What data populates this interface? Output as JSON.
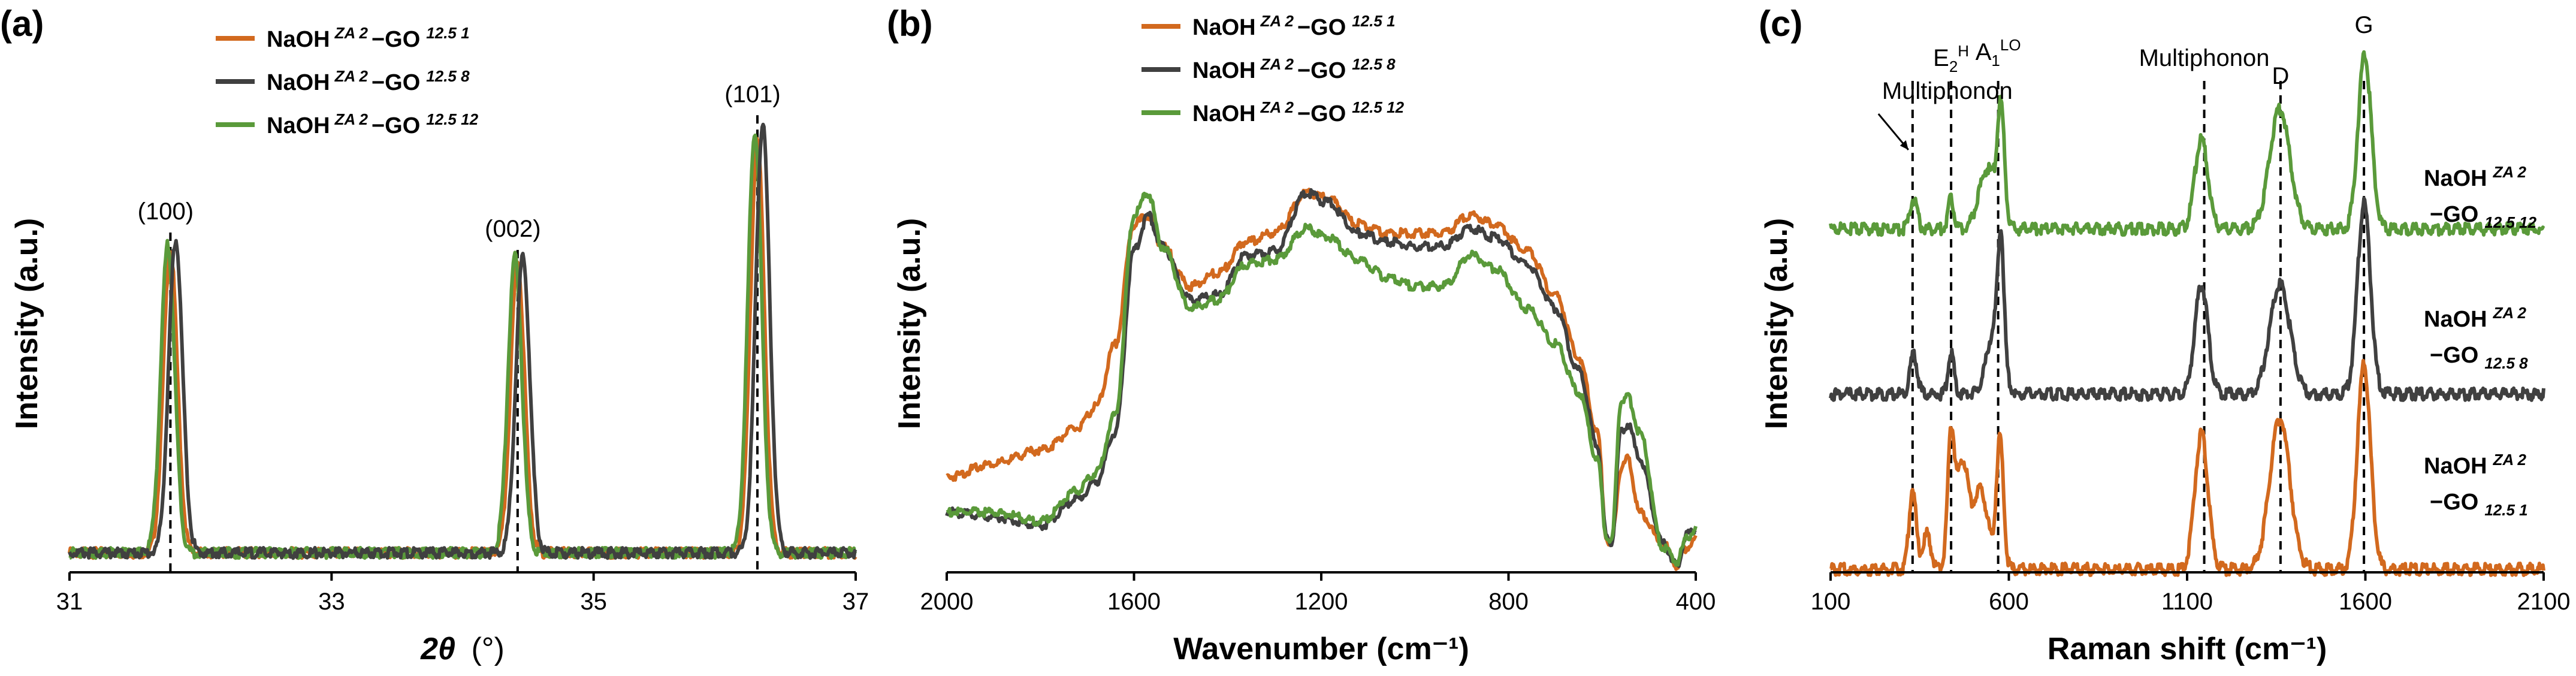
{
  "colors": {
    "orange": "#D2691E",
    "dark": "#404040",
    "green": "#5A9A3A"
  },
  "chart_data": [
    {
      "id": "a",
      "type": "line",
      "panel_label": "(a)",
      "xlabel_symbol": "2θ",
      "xlabel_unit": "(°)",
      "ylabel": "Intensity (a.u.)",
      "xlim": [
        31,
        37
      ],
      "ticks": [
        31,
        33,
        35,
        37
      ],
      "tick_labels": [
        "31",
        "33",
        "35",
        "37"
      ],
      "series_names": [
        "NaOH ZA 2−GO 12.5 1",
        "NaOH ZA 2−GO 12.5 8",
        "NaOH ZA 2−GO 12.5 12"
      ],
      "peaks": [
        {
          "label": "(100)",
          "x": 31.77,
          "heights": [
            0.7,
            0.72,
            0.71
          ]
        },
        {
          "label": "(002)",
          "x": 34.42,
          "heights": [
            0.67,
            0.68,
            0.68
          ]
        },
        {
          "label": "(101)",
          "x": 36.25,
          "heights": [
            0.95,
            0.99,
            0.97
          ]
        }
      ],
      "series_offsets": [
        0,
        0.04,
        -0.02
      ]
    },
    {
      "id": "b",
      "type": "line",
      "panel_label": "(b)",
      "xlabel": "Wavenumber (cm⁻¹)",
      "ylabel": "Intensity (a.u.)",
      "xlim": [
        2000,
        400
      ],
      "ticks": [
        2000,
        1600,
        1200,
        800,
        400
      ],
      "tick_labels": [
        "2000",
        "1600",
        "1200",
        "800",
        "400"
      ],
      "series": [
        {
          "name": "NaOH ZA 2−GO 12.5 1",
          "points": [
            [
              2000,
              0.2
            ],
            [
              1900,
              0.23
            ],
            [
              1800,
              0.26
            ],
            [
              1720,
              0.31
            ],
            [
              1680,
              0.36
            ],
            [
              1640,
              0.5
            ],
            [
              1600,
              0.77
            ],
            [
              1570,
              0.79
            ],
            [
              1540,
              0.72
            ],
            [
              1480,
              0.63
            ],
            [
              1420,
              0.66
            ],
            [
              1360,
              0.73
            ],
            [
              1300,
              0.75
            ],
            [
              1230,
              0.84
            ],
            [
              1190,
              0.83
            ],
            [
              1120,
              0.77
            ],
            [
              1060,
              0.75
            ],
            [
              1000,
              0.75
            ],
            [
              940,
              0.75
            ],
            [
              880,
              0.79
            ],
            [
              830,
              0.77
            ],
            [
              760,
              0.71
            ],
            [
              700,
              0.61
            ],
            [
              650,
              0.47
            ],
            [
              610,
              0.3
            ],
            [
              590,
              0.06
            ],
            [
              580,
              0.05
            ],
            [
              560,
              0.22
            ],
            [
              545,
              0.24
            ],
            [
              520,
              0.12
            ],
            [
              470,
              0.05
            ],
            [
              440,
              0.0
            ],
            [
              420,
              0.04
            ],
            [
              400,
              0.06
            ]
          ]
        },
        {
          "name": "NaOH ZA 2−GO 12.5 8",
          "points": [
            [
              2000,
              0.12
            ],
            [
              1900,
              0.11
            ],
            [
              1800,
              0.09
            ],
            [
              1720,
              0.15
            ],
            [
              1680,
              0.19
            ],
            [
              1640,
              0.3
            ],
            [
              1600,
              0.71
            ],
            [
              1570,
              0.79
            ],
            [
              1540,
              0.72
            ],
            [
              1480,
              0.6
            ],
            [
              1420,
              0.61
            ],
            [
              1360,
              0.7
            ],
            [
              1300,
              0.71
            ],
            [
              1230,
              0.84
            ],
            [
              1190,
              0.82
            ],
            [
              1120,
              0.75
            ],
            [
              1060,
              0.73
            ],
            [
              1000,
              0.72
            ],
            [
              940,
              0.72
            ],
            [
              880,
              0.76
            ],
            [
              830,
              0.74
            ],
            [
              760,
              0.68
            ],
            [
              700,
              0.58
            ],
            [
              650,
              0.44
            ],
            [
              610,
              0.27
            ],
            [
              590,
              0.06
            ],
            [
              580,
              0.05
            ],
            [
              560,
              0.3
            ],
            [
              545,
              0.32
            ],
            [
              520,
              0.24
            ],
            [
              470,
              0.05
            ],
            [
              440,
              0.0
            ],
            [
              420,
              0.07
            ],
            [
              400,
              0.08
            ]
          ]
        },
        {
          "name": "NaOH ZA 2−GO 12.5 12",
          "points": [
            [
              2000,
              0.12
            ],
            [
              1900,
              0.12
            ],
            [
              1800,
              0.1
            ],
            [
              1720,
              0.17
            ],
            [
              1680,
              0.21
            ],
            [
              1640,
              0.34
            ],
            [
              1600,
              0.79
            ],
            [
              1570,
              0.84
            ],
            [
              1540,
              0.72
            ],
            [
              1480,
              0.58
            ],
            [
              1420,
              0.6
            ],
            [
              1360,
              0.68
            ],
            [
              1300,
              0.69
            ],
            [
              1230,
              0.76
            ],
            [
              1190,
              0.74
            ],
            [
              1120,
              0.69
            ],
            [
              1060,
              0.65
            ],
            [
              1000,
              0.63
            ],
            [
              940,
              0.63
            ],
            [
              880,
              0.7
            ],
            [
              830,
              0.67
            ],
            [
              760,
              0.58
            ],
            [
              700,
              0.5
            ],
            [
              650,
              0.39
            ],
            [
              610,
              0.24
            ],
            [
              590,
              0.06
            ],
            [
              580,
              0.05
            ],
            [
              560,
              0.37
            ],
            [
              545,
              0.38
            ],
            [
              520,
              0.3
            ],
            [
              470,
              0.04
            ],
            [
              440,
              0.01
            ],
            [
              420,
              0.06
            ],
            [
              400,
              0.08
            ]
          ]
        }
      ]
    },
    {
      "id": "c",
      "type": "line",
      "panel_label": "(c)",
      "xlabel": "Raman shift (cm⁻¹)",
      "ylabel": "Intensity (a.u.)",
      "xlim": [
        100,
        2100
      ],
      "ticks": [
        100,
        600,
        1100,
        1600,
        2100
      ],
      "tick_labels": [
        "100",
        "600",
        "1100",
        "1600",
        "2100"
      ],
      "marker_lines": [
        330,
        438,
        570,
        1148,
        1362,
        1596
      ],
      "annotations": [
        {
          "text": "Multiphonon",
          "x": 335,
          "arrow": true
        },
        {
          "text": "E",
          "sub": "2",
          "sup": "H",
          "x": 438
        },
        {
          "text": "A",
          "sub": "1",
          "sup": "LO",
          "x": 570
        },
        {
          "text": "Multiphonon",
          "x": 1148
        },
        {
          "text": "D",
          "x": 1362
        },
        {
          "text": "G",
          "x": 1596
        }
      ],
      "series": [
        {
          "name": "NaOH ZA 2−GO 12.5 1",
          "label_line1": "NaOH",
          "sup1": "ZA 2",
          "label_line2": "−GO",
          "sub2": "12.5 1",
          "offset": 0.0,
          "peaks": [
            [
              330,
              0.16,
              14
            ],
            [
              370,
              0.07,
              16
            ],
            [
              438,
              0.26,
              14
            ],
            [
              470,
              0.21,
              22
            ],
            [
              520,
              0.16,
              30
            ],
            [
              575,
              0.26,
              14
            ],
            [
              1140,
              0.27,
              26
            ],
            [
              1360,
              0.3,
              40
            ],
            [
              1596,
              0.41,
              26
            ]
          ]
        },
        {
          "name": "NaOH ZA 2−GO 12.5 8",
          "label_line1": "NaOH",
          "sup1": "ZA 2",
          "label_line2": "−GO",
          "sub2": "12.5 8",
          "offset": 0.35,
          "peaks": [
            [
              333,
              0.08,
              14
            ],
            [
              438,
              0.08,
              12
            ],
            [
              560,
              0.13,
              30
            ],
            [
              578,
              0.24,
              12
            ],
            [
              1140,
              0.22,
              26
            ],
            [
              1360,
              0.22,
              40
            ],
            [
              1596,
              0.38,
              26
            ]
          ]
        },
        {
          "name": "NaOH ZA 2−GO 12.5 12",
          "label_line1": "NaOH",
          "sup1": "ZA 2",
          "label_line2": "−GO",
          "sub2": "12.5 12",
          "offset": 0.68,
          "peaks": [
            [
              333,
              0.06,
              14
            ],
            [
              438,
              0.06,
              12
            ],
            [
              540,
              0.12,
              34
            ],
            [
              578,
              0.22,
              14
            ],
            [
              1140,
              0.18,
              26
            ],
            [
              1360,
              0.24,
              40
            ],
            [
              1598,
              0.35,
              26
            ]
          ]
        }
      ]
    }
  ],
  "legend_main": "NaOH",
  "legend_sep": "−GO",
  "legend_sup": "ZA 2",
  "legend_subs": [
    "12.5 1",
    "12.5 8",
    "12.5 12"
  ]
}
